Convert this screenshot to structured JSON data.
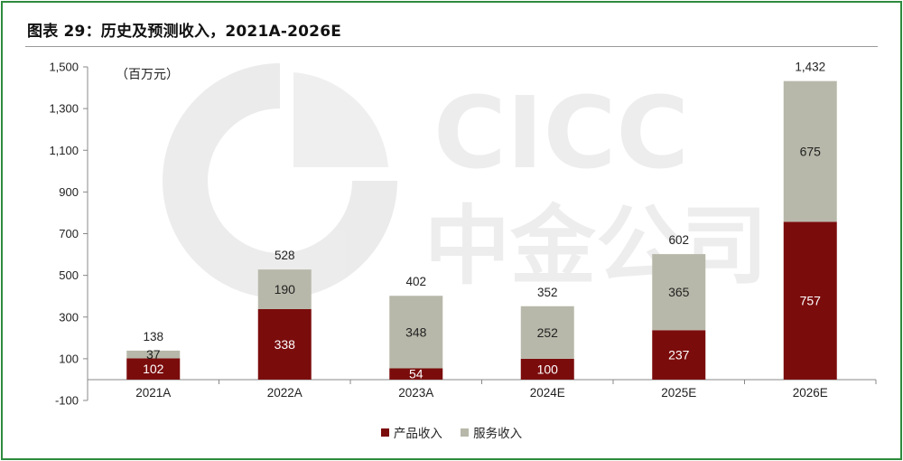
{
  "title": "图表 29：历史及预测收入，2021A-2026E",
  "unit_label": "（百万元）",
  "watermark": {
    "latin": "CICC",
    "chinese": "中金公司"
  },
  "colors": {
    "product": "#7b0c0c",
    "service": "#b8b8aa",
    "frame": "#2e8b3e"
  },
  "legend": [
    {
      "name": "产品收入",
      "color": "#7b0c0c"
    },
    {
      "name": "服务收入",
      "color": "#b8b8aa"
    }
  ],
  "chart_data": {
    "type": "bar",
    "stacked": true,
    "categories": [
      "2021A",
      "2022A",
      "2023A",
      "2024E",
      "2025E",
      "2026E"
    ],
    "series": [
      {
        "name": "产品收入",
        "values": [
          102,
          338,
          54,
          100,
          237,
          757
        ]
      },
      {
        "name": "服务收入",
        "values": [
          37,
          190,
          348,
          252,
          365,
          675
        ]
      }
    ],
    "totals": [
      "138",
      "528",
      "402",
      "352",
      "602",
      "1,432"
    ],
    "ylim": [
      -100,
      1500
    ],
    "yticks": [
      "-100",
      "100",
      "300",
      "500",
      "700",
      "900",
      "1,100",
      "1,300",
      "1,500"
    ],
    "ytick_values": [
      -100,
      100,
      300,
      500,
      700,
      900,
      1100,
      1300,
      1500
    ],
    "grid": false,
    "legend_position": "bottom"
  }
}
